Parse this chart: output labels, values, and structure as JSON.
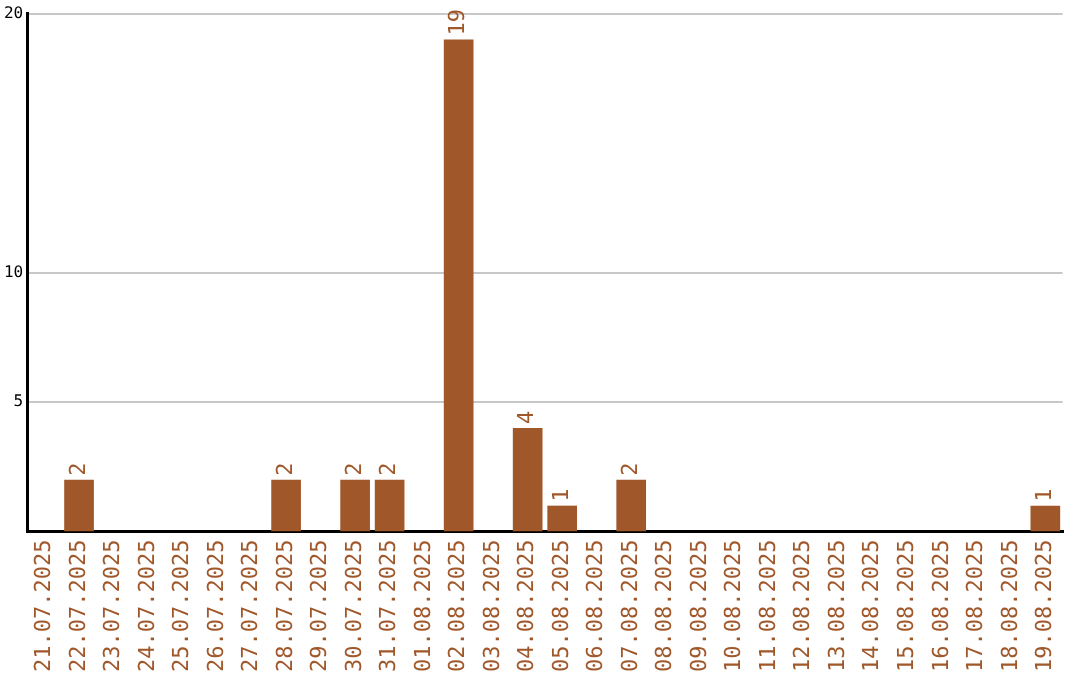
{
  "chart_data": {
    "type": "bar",
    "categories": [
      "21.07.2025",
      "22.07.2025",
      "23.07.2025",
      "24.07.2025",
      "25.07.2025",
      "26.07.2025",
      "27.07.2025",
      "28.07.2025",
      "29.07.2025",
      "30.07.2025",
      "31.07.2025",
      "01.08.2025",
      "02.08.2025",
      "03.08.2025",
      "04.08.2025",
      "05.08.2025",
      "06.08.2025",
      "07.08.2025",
      "08.08.2025",
      "09.08.2025",
      "10.08.2025",
      "11.08.2025",
      "12.08.2025",
      "13.08.2025",
      "14.08.2025",
      "15.08.2025",
      "16.08.2025",
      "17.08.2025",
      "18.08.2025",
      "19.08.2025"
    ],
    "values": [
      0,
      2,
      0,
      0,
      0,
      0,
      0,
      2,
      0,
      2,
      2,
      0,
      19,
      0,
      4,
      1,
      0,
      2,
      0,
      0,
      0,
      0,
      0,
      0,
      0,
      0,
      0,
      0,
      0,
      1
    ],
    "value_labels": [
      null,
      "2",
      null,
      null,
      null,
      null,
      null,
      "2",
      null,
      "2",
      "2",
      null,
      "19",
      null,
      "4",
      "1",
      null,
      "2",
      null,
      null,
      null,
      null,
      null,
      null,
      null,
      null,
      null,
      null,
      null,
      "1"
    ],
    "color": "#a0572a",
    "ylim": [
      0,
      20
    ],
    "yticks": [
      5,
      10,
      20
    ],
    "grid": "y",
    "legend": false
  }
}
